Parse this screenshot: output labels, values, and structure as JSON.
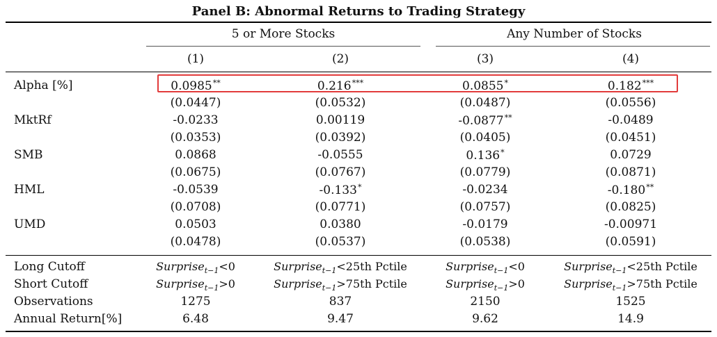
{
  "title": "Panel B: Abnormal Returns to Trading Strategy",
  "groups": [
    {
      "label": "5 or More Stocks"
    },
    {
      "label": "Any Number of Stocks"
    }
  ],
  "columns": [
    "(1)",
    "(2)",
    "(3)",
    "(4)"
  ],
  "rows": [
    {
      "label": "Alpha [%]",
      "values": [
        {
          "v": "0.0985",
          "s": "**"
        },
        {
          "v": "0.216",
          "s": "***"
        },
        {
          "v": "0.0855",
          "s": "*"
        },
        {
          "v": "0.182",
          "s": "***"
        }
      ]
    },
    {
      "label": "",
      "values": [
        {
          "v": "(0.0447)",
          "s": ""
        },
        {
          "v": "(0.0532)",
          "s": ""
        },
        {
          "v": "(0.0487)",
          "s": ""
        },
        {
          "v": "(0.0556)",
          "s": ""
        }
      ]
    },
    {
      "label": "MktRf",
      "values": [
        {
          "v": "-0.0233",
          "s": ""
        },
        {
          "v": "0.00119",
          "s": ""
        },
        {
          "v": "-0.0877",
          "s": "**"
        },
        {
          "v": "-0.0489",
          "s": ""
        }
      ]
    },
    {
      "label": "",
      "values": [
        {
          "v": "(0.0353)",
          "s": ""
        },
        {
          "v": "(0.0392)",
          "s": ""
        },
        {
          "v": "(0.0405)",
          "s": ""
        },
        {
          "v": "(0.0451)",
          "s": ""
        }
      ]
    },
    {
      "label": "SMB",
      "values": [
        {
          "v": "0.0868",
          "s": ""
        },
        {
          "v": "-0.0555",
          "s": ""
        },
        {
          "v": "0.136",
          "s": "*"
        },
        {
          "v": "0.0729",
          "s": ""
        }
      ]
    },
    {
      "label": "",
      "values": [
        {
          "v": "(0.0675)",
          "s": ""
        },
        {
          "v": "(0.0767)",
          "s": ""
        },
        {
          "v": "(0.0779)",
          "s": ""
        },
        {
          "v": "(0.0871)",
          "s": ""
        }
      ]
    },
    {
      "label": "HML",
      "values": [
        {
          "v": "-0.0539",
          "s": ""
        },
        {
          "v": "-0.133",
          "s": "*"
        },
        {
          "v": "-0.0234",
          "s": ""
        },
        {
          "v": "-0.180",
          "s": "**"
        }
      ]
    },
    {
      "label": "",
      "values": [
        {
          "v": "(0.0708)",
          "s": ""
        },
        {
          "v": "(0.0771)",
          "s": ""
        },
        {
          "v": "(0.0757)",
          "s": ""
        },
        {
          "v": "(0.0825)",
          "s": ""
        }
      ]
    },
    {
      "label": "UMD",
      "values": [
        {
          "v": "0.0503",
          "s": ""
        },
        {
          "v": "0.0380",
          "s": ""
        },
        {
          "v": "-0.0179",
          "s": ""
        },
        {
          "v": "-0.00971",
          "s": ""
        }
      ]
    },
    {
      "label": "",
      "values": [
        {
          "v": "(0.0478)",
          "s": ""
        },
        {
          "v": "(0.0537)",
          "s": ""
        },
        {
          "v": "(0.0538)",
          "s": ""
        },
        {
          "v": "(0.0591)",
          "s": ""
        }
      ]
    }
  ],
  "cutoff_rows": [
    {
      "label": "Long Cutoff",
      "values": [
        {
          "var": "Surprise",
          "sub": "t−1",
          "rel": "<0"
        },
        {
          "var": "Surprise",
          "sub": "t−1",
          "rel": "<25th Pctile"
        },
        {
          "var": "Surprise",
          "sub": "t−1",
          "rel": "<0"
        },
        {
          "var": "Surprise",
          "sub": "t−1",
          "rel": "<25th Pctile"
        }
      ]
    },
    {
      "label": "Short Cutoff",
      "values": [
        {
          "var": "Surprise",
          "sub": "t−1",
          "rel": ">0"
        },
        {
          "var": "Surprise",
          "sub": "t−1",
          "rel": ">75th Pctile"
        },
        {
          "var": "Surprise",
          "sub": "t−1",
          "rel": ">0"
        },
        {
          "var": "Surprise",
          "sub": "t−1",
          "rel": ">75th Pctile"
        }
      ]
    }
  ],
  "summary_rows": [
    {
      "label": "Observations",
      "values": [
        "1275",
        "837",
        "2150",
        "1525"
      ]
    },
    {
      "label": "Annual Return[%]",
      "values": [
        "6.48",
        "9.47",
        "9.62",
        "14.9"
      ]
    }
  ],
  "colors": {
    "highlight": "#e23b3b"
  }
}
